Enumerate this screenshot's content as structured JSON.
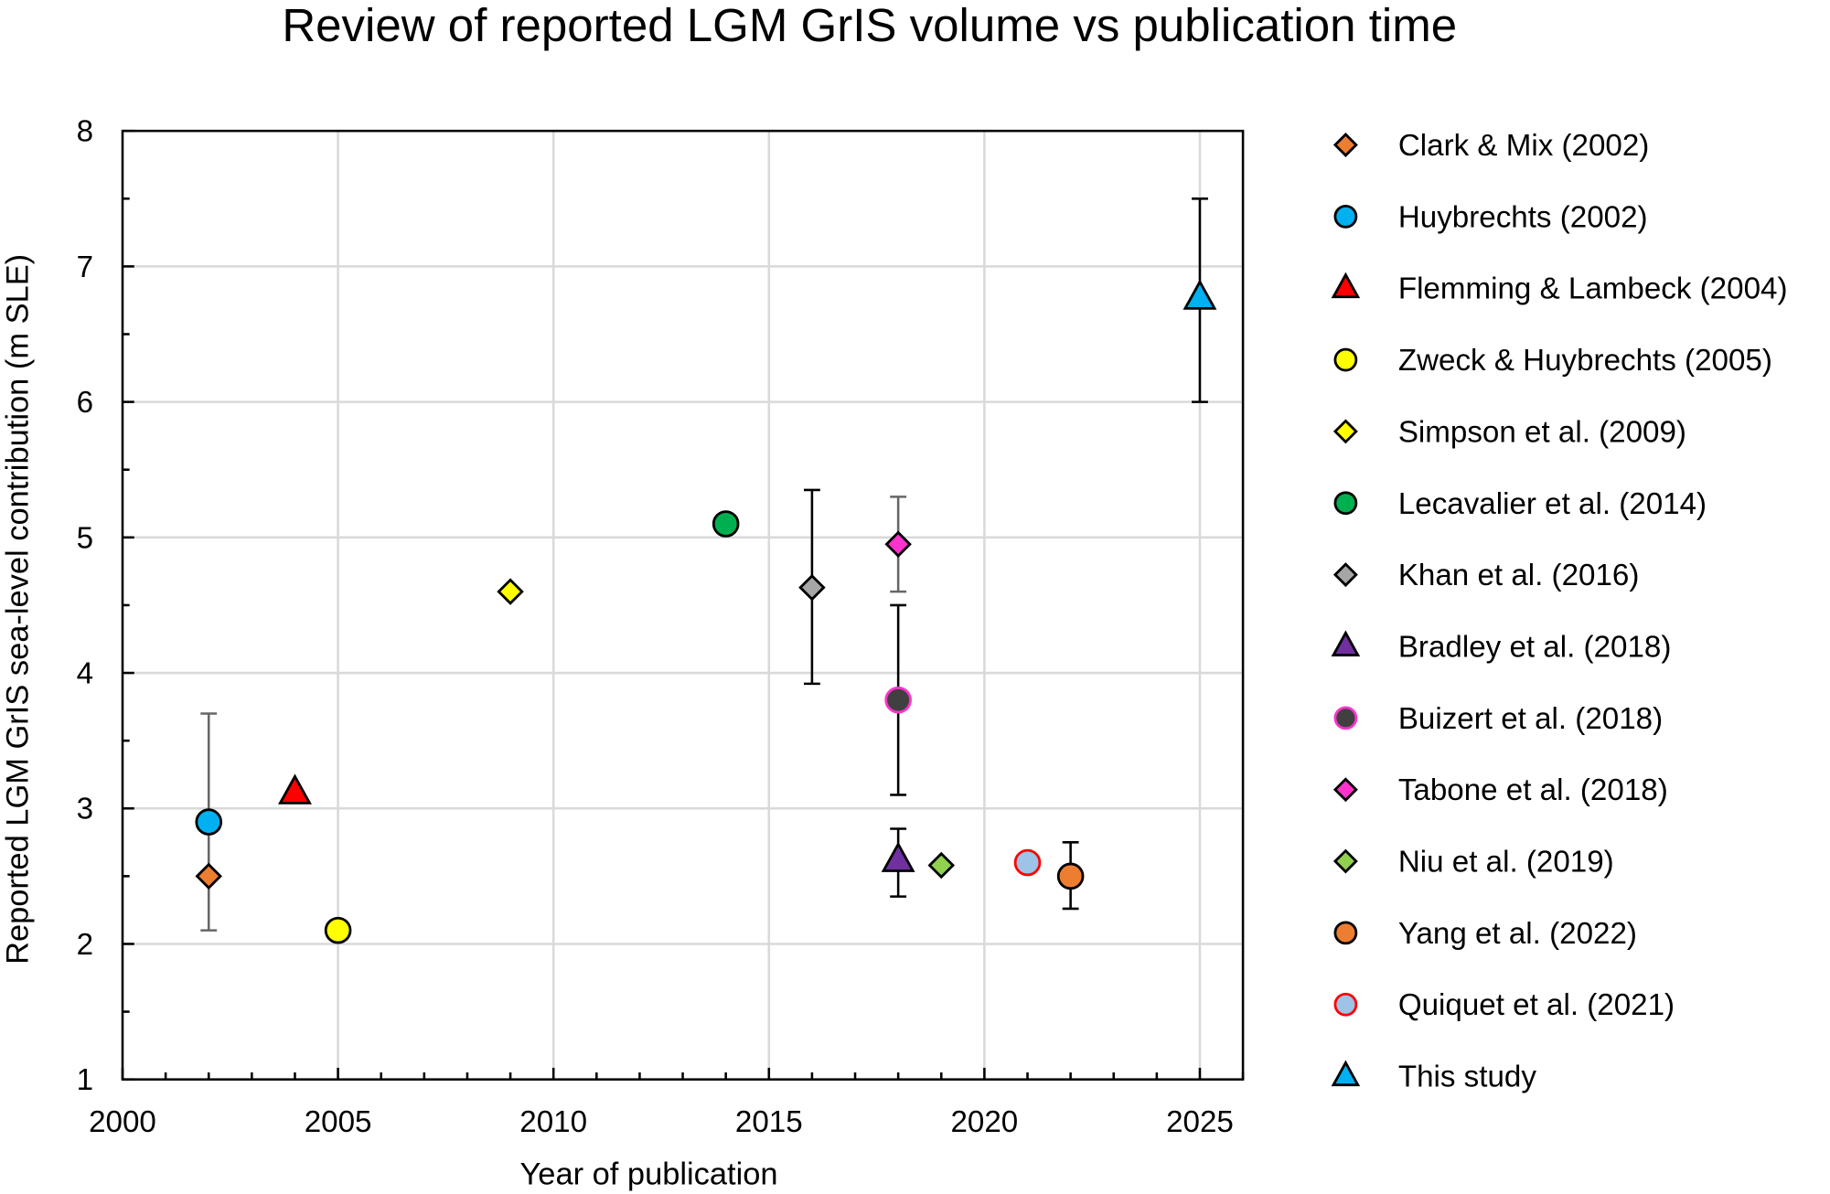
{
  "chart_data": {
    "type": "scatter",
    "title": "Review of reported LGM GrIS volume vs publication time",
    "xlabel": "Year of publication",
    "ylabel": "Reported LGM GrIS sea-level contribution (m SLE)",
    "xlim": [
      2000,
      2026
    ],
    "ylim": [
      1,
      8
    ],
    "xticks": [
      2000,
      2005,
      2010,
      2015,
      2020,
      2025
    ],
    "yticks": [
      1,
      2,
      3,
      4,
      5,
      6,
      7,
      8
    ],
    "grid": true,
    "legend_position": "right",
    "series": [
      {
        "name": "Clark & Mix (2002)",
        "x": 2002,
        "y": 2.5,
        "err": [
          2.1,
          3.7
        ],
        "errColor": "#666666",
        "marker": "diamond",
        "fill": "#ED7D31",
        "stroke": "#000000"
      },
      {
        "name": "Huybrechts (2002)",
        "x": 2002,
        "y": 2.9,
        "marker": "circle",
        "fill": "#00B0F0",
        "stroke": "#000000"
      },
      {
        "name": "Flemming & Lambeck (2004)",
        "x": 2004,
        "y": 3.1,
        "marker": "triangle",
        "fill": "#FF0000",
        "stroke": "#000000"
      },
      {
        "name": "Zweck & Huybrechts (2005)",
        "x": 2005,
        "y": 2.1,
        "marker": "circle",
        "fill": "#FFFF00",
        "stroke": "#000000"
      },
      {
        "name": "Simpson et al. (2009)",
        "x": 2009,
        "y": 4.6,
        "marker": "diamond",
        "fill": "#FFFF00",
        "stroke": "#000000"
      },
      {
        "name": "Lecavalier et al. (2014)",
        "x": 2014,
        "y": 5.1,
        "marker": "circle",
        "fill": "#00B050",
        "stroke": "#000000"
      },
      {
        "name": "Khan et al. (2016)",
        "x": 2016,
        "y": 4.63,
        "err": [
          3.92,
          5.35
        ],
        "errColor": "#000000",
        "marker": "diamond",
        "fill": "#A6A6A6",
        "stroke": "#000000"
      },
      {
        "name": "Bradley et al. (2018)",
        "x": 2018,
        "y": 2.6,
        "err": [
          2.35,
          2.85
        ],
        "errColor": "#000000",
        "marker": "triangle",
        "fill": "#7030A0",
        "stroke": "#000000"
      },
      {
        "name": "Buizert et al. (2018)",
        "x": 2018,
        "y": 3.8,
        "err": [
          3.1,
          4.5
        ],
        "errColor": "#000000",
        "marker": "circle",
        "fill": "#404040",
        "stroke": "#FF33CC"
      },
      {
        "name": "Tabone et al. (2018)",
        "x": 2018,
        "y": 4.95,
        "err": [
          4.6,
          5.3
        ],
        "errColor": "#666666",
        "marker": "diamond",
        "fill": "#FF33CC",
        "stroke": "#000000"
      },
      {
        "name": "Niu et al. (2019)",
        "x": 2019,
        "y": 2.58,
        "marker": "diamond",
        "fill": "#92D050",
        "stroke": "#000000"
      },
      {
        "name": "Yang et al. (2022)",
        "x": 2022,
        "y": 2.5,
        "err": [
          2.26,
          2.75
        ],
        "errColor": "#000000",
        "marker": "circle",
        "fill": "#ED7D31",
        "stroke": "#000000"
      },
      {
        "name": "Quiquet et al. (2021)",
        "x": 2021,
        "y": 2.6,
        "marker": "circle",
        "fill": "#9DC3E6",
        "stroke": "#FF0000"
      },
      {
        "name": "This study",
        "x": 2025,
        "y": 6.75,
        "err": [
          6.0,
          7.5
        ],
        "errColor": "#000000",
        "marker": "triangle",
        "fill": "#00B0F0",
        "stroke": "#000000"
      }
    ]
  }
}
